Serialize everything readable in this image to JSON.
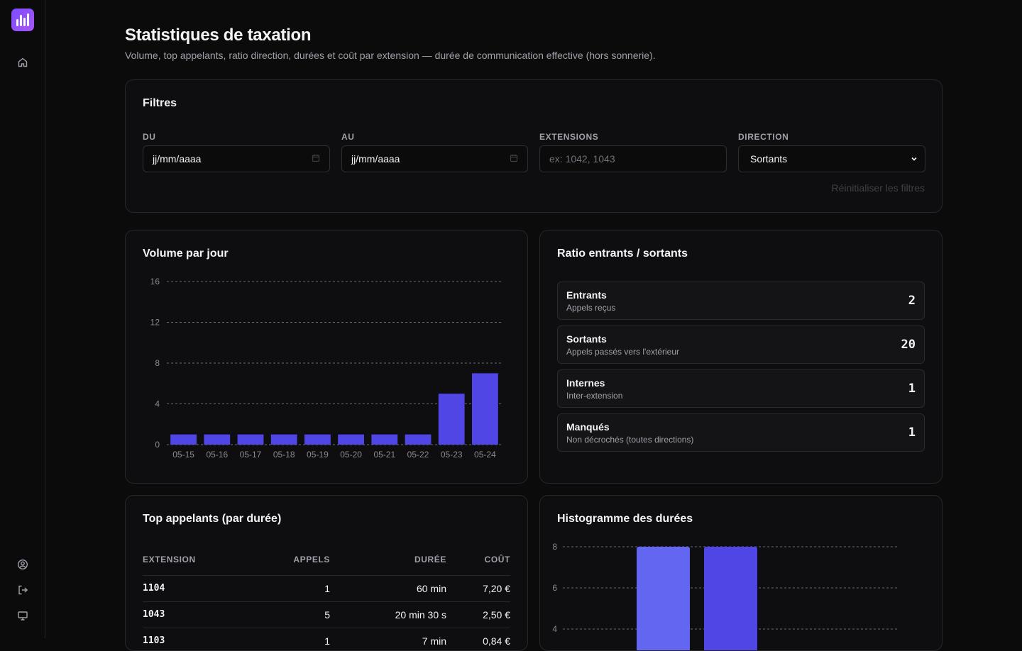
{
  "page": {
    "title": "Statistiques de taxation",
    "subtitle": "Volume, top appelants, ratio direction, durées et coût par extension — durée de communication effective (hors sonnerie)."
  },
  "sidebar": {
    "icons": [
      "home-icon",
      "user-circle-icon",
      "logout-icon",
      "monitor-icon"
    ]
  },
  "filters": {
    "title": "Filtres",
    "from_label": "DU",
    "from_value": "jj/mm/aaaa",
    "to_label": "AU",
    "to_value": "jj/mm/aaaa",
    "extensions_label": "EXTENSIONS",
    "extensions_placeholder": "ex: 1042, 1043",
    "direction_label": "DIRECTION",
    "direction_value": "Sortants",
    "reset_label": "Réinitialiser les filtres"
  },
  "volume_card": {
    "title": "Volume par jour"
  },
  "ratio": {
    "title": "Ratio entrants / sortants",
    "rows": [
      {
        "name": "Entrants",
        "desc": "Appels reçus",
        "value": "2"
      },
      {
        "name": "Sortants",
        "desc": "Appels passés vers l'extérieur",
        "value": "20"
      },
      {
        "name": "Internes",
        "desc": "Inter-extension",
        "value": "1"
      },
      {
        "name": "Manqués",
        "desc": "Non décrochés (toutes directions)",
        "value": "1"
      }
    ]
  },
  "top_callers": {
    "title": "Top appelants (par durée)",
    "columns": [
      "EXTENSION",
      "APPELS",
      "DURÉE",
      "COÛT"
    ],
    "rows": [
      [
        "1104",
        "1",
        "60 min",
        "7,20 €"
      ],
      [
        "1043",
        "5",
        "20 min 30 s",
        "2,50 €"
      ],
      [
        "1103",
        "1",
        "7 min",
        "0,84 €"
      ]
    ]
  },
  "histogram_card": {
    "title": "Histogramme des durées"
  },
  "chart_data": [
    {
      "type": "bar",
      "categories": [
        "05-15",
        "05-16",
        "05-17",
        "05-18",
        "05-19",
        "05-20",
        "05-21",
        "05-22",
        "05-23",
        "05-24"
      ],
      "values": [
        1,
        1,
        1,
        1,
        1,
        1,
        1,
        1,
        5,
        7
      ],
      "yticks": [
        0,
        4,
        8,
        12,
        16
      ],
      "ylim": [
        0,
        16
      ],
      "grid": true,
      "color": "#4f46e5"
    },
    {
      "type": "bar",
      "values": [
        8,
        8
      ],
      "yticks": [
        4,
        6,
        8
      ],
      "grid": true,
      "colors": [
        "#6366f1",
        "#4f46e5"
      ]
    }
  ]
}
